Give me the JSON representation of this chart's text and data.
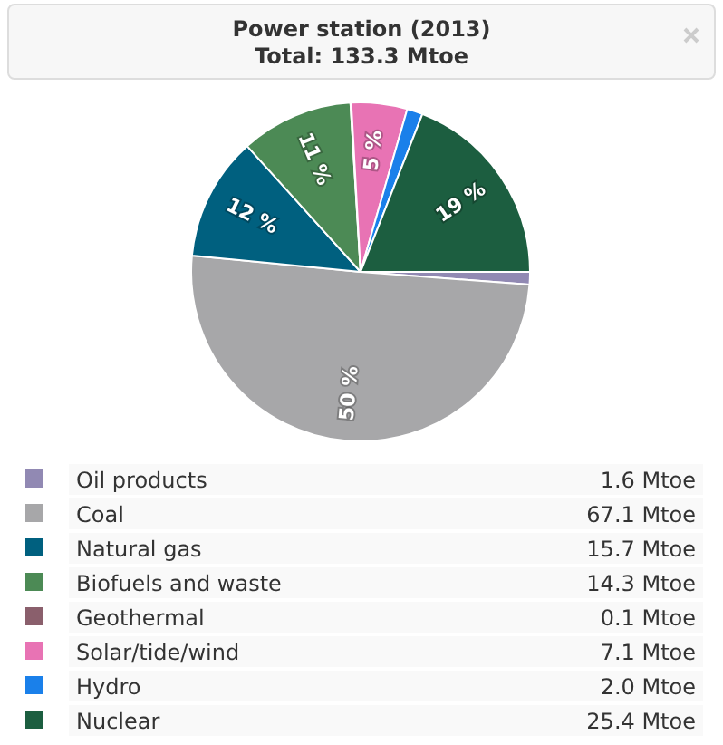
{
  "chart_data": {
    "type": "pie",
    "title": "Power station (2013)",
    "subtitle": "Total: 133.3 Mtoe",
    "categories": [
      "Oil products",
      "Coal",
      "Natural gas",
      "Biofuels and waste",
      "Geothermal",
      "Solar/tide/wind",
      "Hydro",
      "Nuclear"
    ],
    "values": [
      1.6,
      67.1,
      15.7,
      14.3,
      0.1,
      7.1,
      2.0,
      25.4
    ],
    "colors": [
      "#9189b3",
      "#a7a7a9",
      "#00607f",
      "#4c8a55",
      "#8a5f6c",
      "#e873b4",
      "#1a80ea",
      "#1c5e40"
    ],
    "value_labels": [
      "1.6 Mtoe",
      "67.1 Mtoe",
      "15.7 Mtoe",
      "14.3 Mtoe",
      "0.1 Mtoe",
      "7.1 Mtoe",
      "2.0 Mtoe",
      "25.4 Mtoe"
    ],
    "annotations": [
      {
        "text": "50 %",
        "x": "Coal"
      },
      {
        "text": "12 %",
        "x": "Natural gas"
      },
      {
        "text": "11 %",
        "x": "Biofuels and waste"
      },
      {
        "text": "5 %",
        "x": "Solar/tide/wind"
      },
      {
        "text": "19 %",
        "x": "Nuclear"
      }
    ],
    "legend": "bottom"
  }
}
